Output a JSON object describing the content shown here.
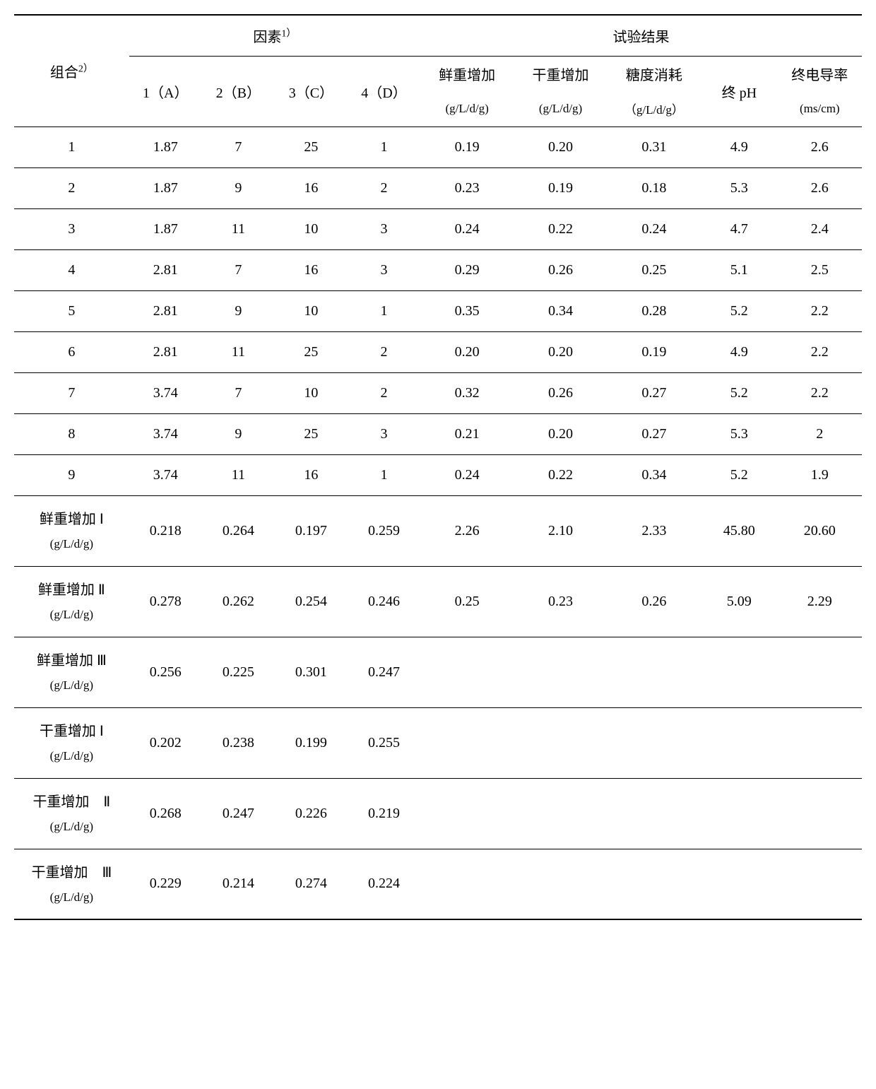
{
  "border_color": "#000000",
  "background_color": "#ffffff",
  "text_color": "#000000",
  "header": {
    "combo": "组合",
    "combo_sup": "2）",
    "factors_group": "因素",
    "factors_sup": "1）",
    "results_group": "试验结果",
    "factor_cols": [
      "1（A）",
      "2（B）",
      "3（C）",
      "4（D）"
    ],
    "result_cols": [
      {
        "top": "鲜重增加",
        "unit": "(g/L/d/g)"
      },
      {
        "top": "干重增加",
        "unit": "(g/L/d/g)"
      },
      {
        "top": "糖度消耗",
        "unit": "（g/L/d/g）"
      }
    ],
    "ph_col": "终 pH",
    "ec_col": {
      "top": "终电导率",
      "unit": "(ms/cm)"
    }
  },
  "rows": [
    {
      "id": "1",
      "f": [
        "1.87",
        "7",
        "25",
        "1"
      ],
      "r": [
        "0.19",
        "0.20",
        "0.31",
        "4.9",
        "2.6"
      ]
    },
    {
      "id": "2",
      "f": [
        "1.87",
        "9",
        "16",
        "2"
      ],
      "r": [
        "0.23",
        "0.19",
        "0.18",
        "5.3",
        "2.6"
      ]
    },
    {
      "id": "3",
      "f": [
        "1.87",
        "11",
        "10",
        "3"
      ],
      "r": [
        "0.24",
        "0.22",
        "0.24",
        "4.7",
        "2.4"
      ]
    },
    {
      "id": "4",
      "f": [
        "2.81",
        "7",
        "16",
        "3"
      ],
      "r": [
        "0.29",
        "0.26",
        "0.25",
        "5.1",
        "2.5"
      ]
    },
    {
      "id": "5",
      "f": [
        "2.81",
        "9",
        "10",
        "1"
      ],
      "r": [
        "0.35",
        "0.34",
        "0.28",
        "5.2",
        "2.2"
      ]
    },
    {
      "id": "6",
      "f": [
        "2.81",
        "11",
        "25",
        "2"
      ],
      "r": [
        "0.20",
        "0.20",
        "0.19",
        "4.9",
        "2.2"
      ]
    },
    {
      "id": "7",
      "f": [
        "3.74",
        "7",
        "10",
        "2"
      ],
      "r": [
        "0.32",
        "0.26",
        "0.27",
        "5.2",
        "2.2"
      ]
    },
    {
      "id": "8",
      "f": [
        "3.74",
        "9",
        "25",
        "3"
      ],
      "r": [
        "0.21",
        "0.20",
        "0.27",
        "5.3",
        "2"
      ]
    },
    {
      "id": "9",
      "f": [
        "3.74",
        "11",
        "16",
        "1"
      ],
      "r": [
        "0.24",
        "0.22",
        "0.34",
        "5.2",
        "1.9"
      ]
    }
  ],
  "summary": [
    {
      "label_top": "鲜重增加 Ⅰ",
      "unit": "(g/L/d/g)",
      "f": [
        "0.218",
        "0.264",
        "0.197",
        "0.259"
      ],
      "r": [
        "2.26",
        "2.10",
        "2.33",
        "45.80",
        "20.60"
      ]
    },
    {
      "label_top": "鲜重增加 Ⅱ",
      "unit": "(g/L/d/g)",
      "f": [
        "0.278",
        "0.262",
        "0.254",
        "0.246"
      ],
      "r": [
        "0.25",
        "0.23",
        "0.26",
        "5.09",
        "2.29"
      ]
    },
    {
      "label_top": "鲜重增加 Ⅲ",
      "unit": "(g/L/d/g)",
      "f": [
        "0.256",
        "0.225",
        "0.301",
        "0.247"
      ],
      "r": [
        "",
        "",
        "",
        "",
        ""
      ]
    },
    {
      "label_top": "干重增加 Ⅰ",
      "unit": "(g/L/d/g)",
      "f": [
        "0.202",
        "0.238",
        "0.199",
        "0.255"
      ],
      "r": [
        "",
        "",
        "",
        "",
        ""
      ]
    },
    {
      "label_top": "干重增加　Ⅱ",
      "unit": "(g/L/d/g)",
      "f": [
        "0.268",
        "0.247",
        "0.226",
        "0.219"
      ],
      "r": [
        "",
        "",
        "",
        "",
        ""
      ]
    },
    {
      "label_top": "干重增加　Ⅲ",
      "unit": "(g/L/d/g)",
      "f": [
        "0.229",
        "0.214",
        "0.274",
        "0.224"
      ],
      "r": [
        "",
        "",
        "",
        "",
        ""
      ]
    }
  ]
}
